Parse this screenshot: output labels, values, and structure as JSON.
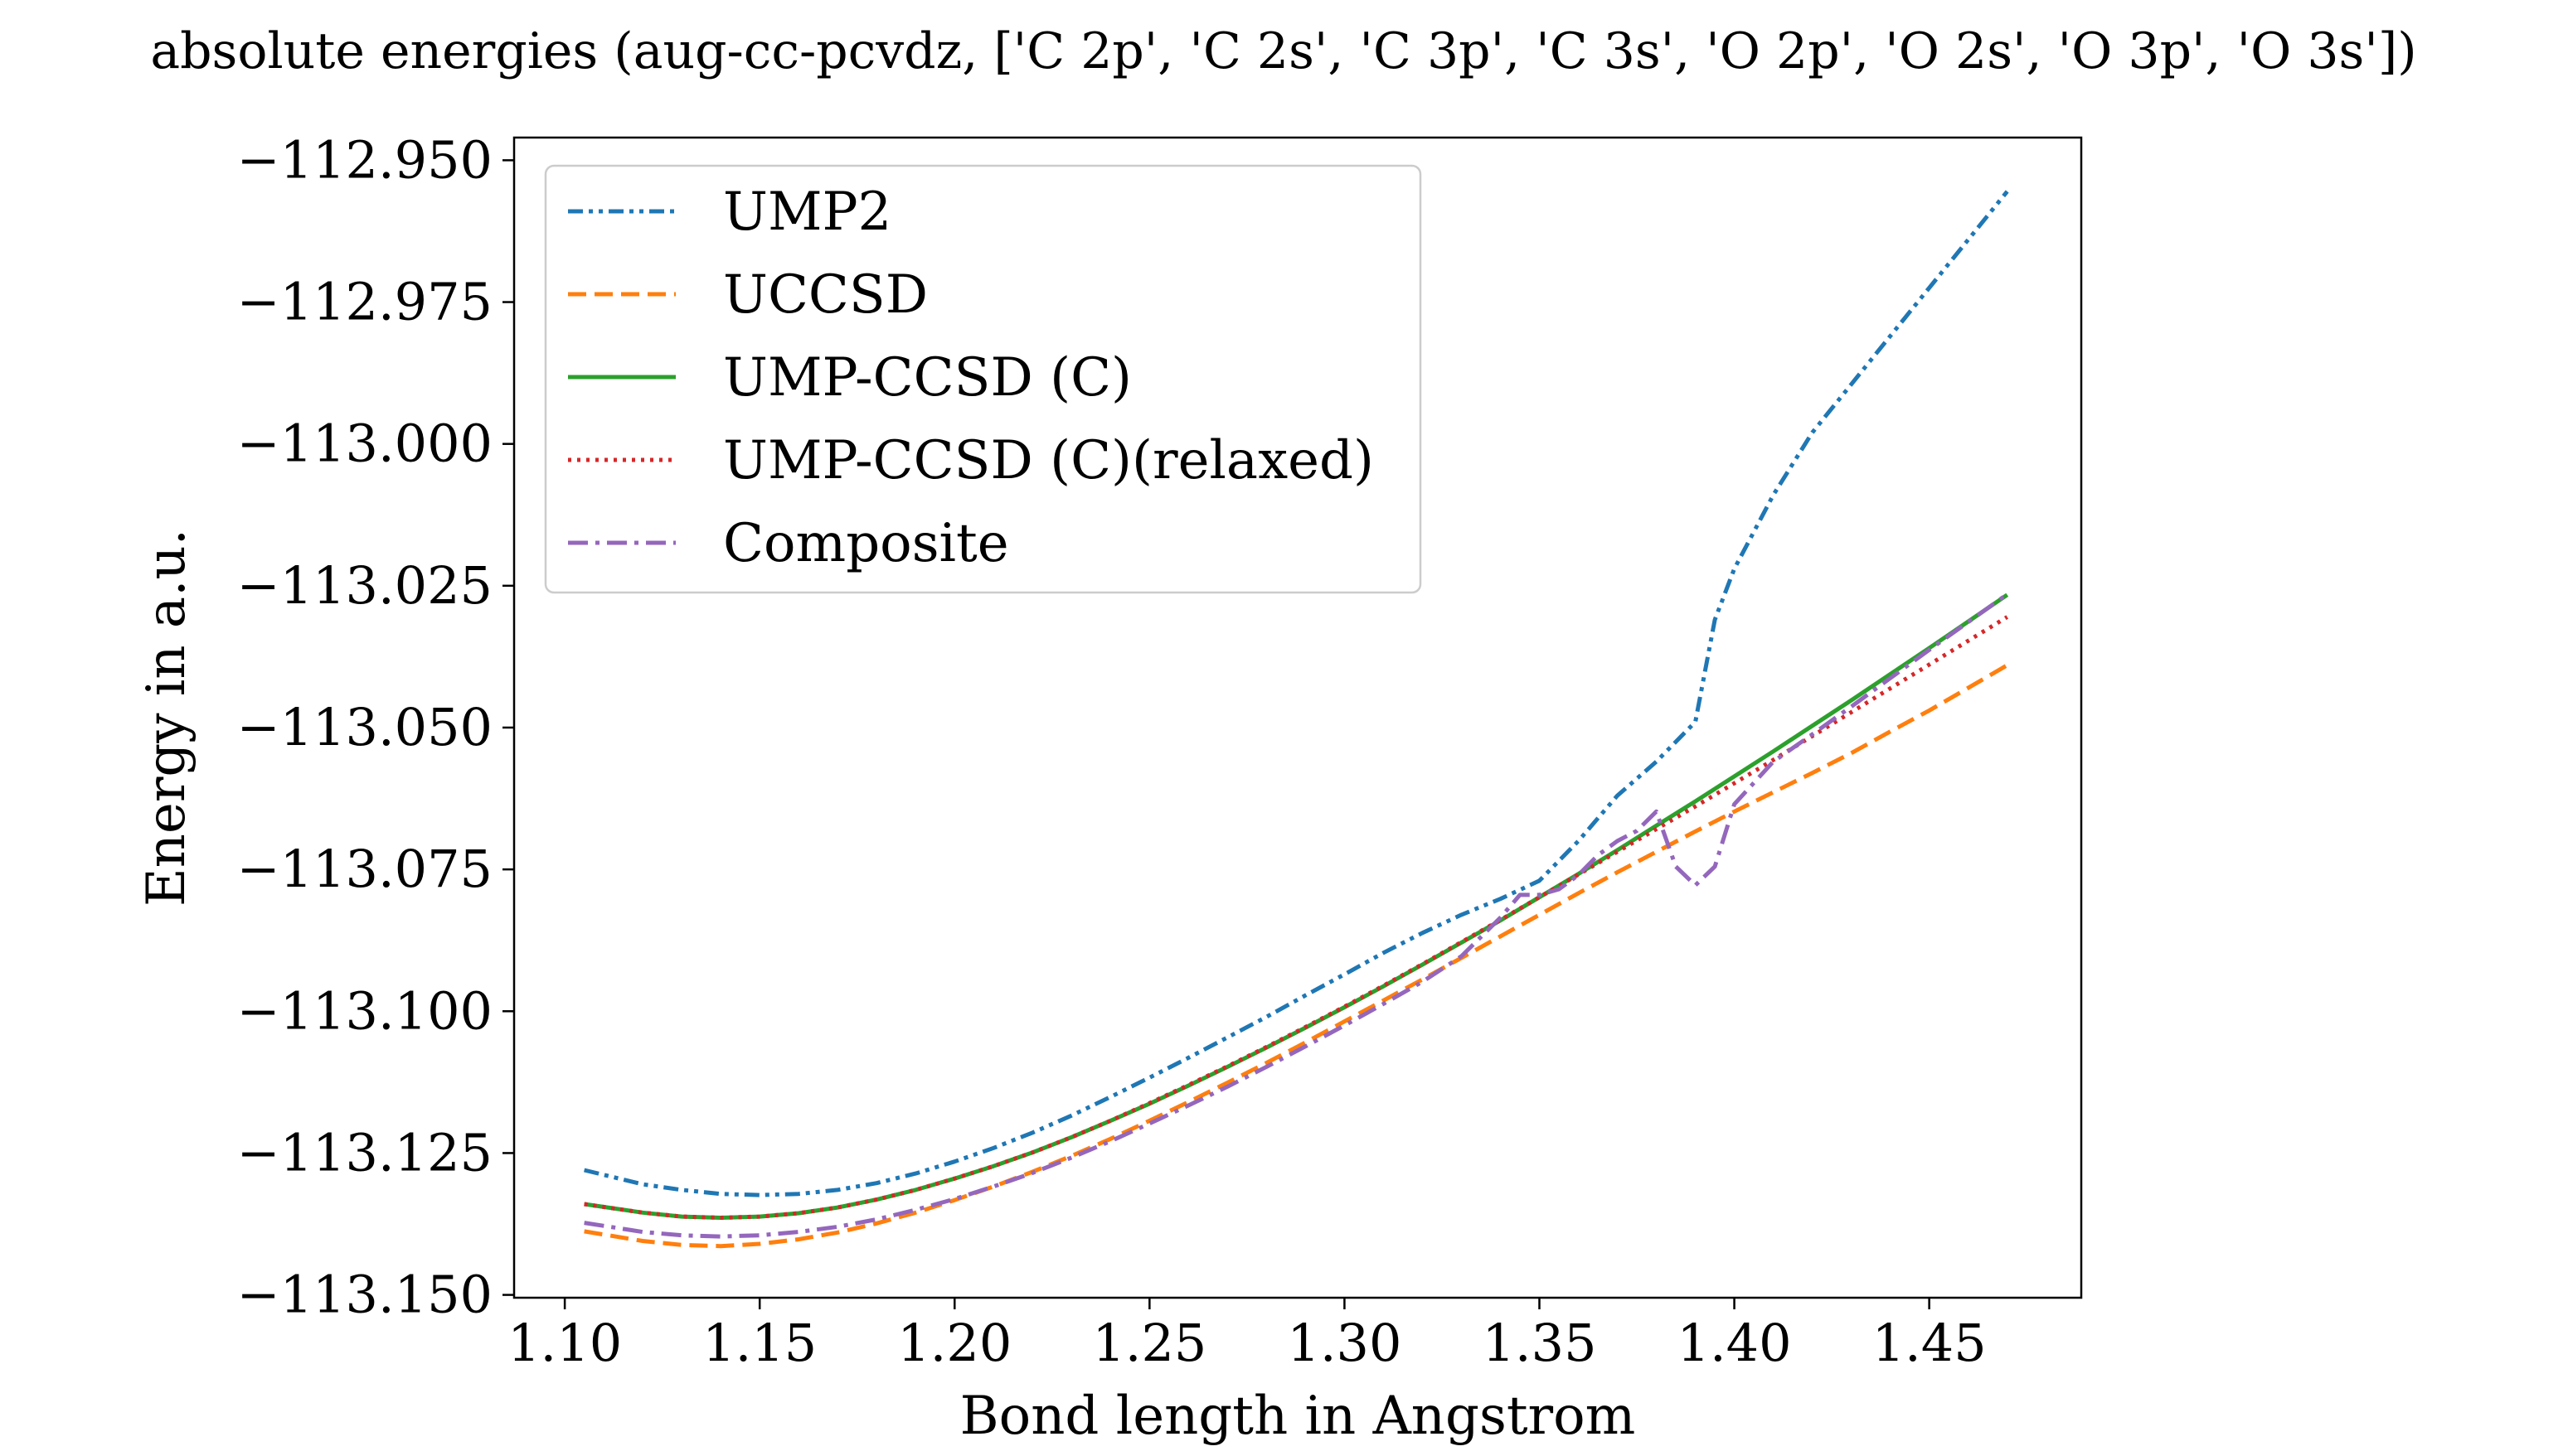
{
  "chart_data": {
    "type": "line",
    "title": "absolute energies (aug-cc-pcvdz, ['C 2p', 'C 2s', 'C 3p', 'C 3s', 'O 2p', 'O 2s', 'O 3p', 'O 3s'])",
    "xlabel": "Bond length in Angstrom",
    "ylabel": "Energy in a.u.",
    "xlim": [
      1.087,
      1.489
    ],
    "ylim": [
      -113.1505,
      -112.946
    ],
    "xticks": [
      "1.10",
      "1.15",
      "1.20",
      "1.25",
      "1.30",
      "1.35",
      "1.40",
      "1.45"
    ],
    "xtick_values": [
      1.1,
      1.15,
      1.2,
      1.25,
      1.3,
      1.35,
      1.4,
      1.45
    ],
    "yticks": [
      "−112.950",
      "−112.975",
      "−113.000",
      "−113.025",
      "−113.050",
      "−113.075",
      "−113.100",
      "−113.125",
      "−113.150"
    ],
    "ytick_values": [
      -112.95,
      -112.975,
      -113.0,
      -113.025,
      -113.05,
      -113.075,
      -113.1,
      -113.125,
      -113.15
    ],
    "legend_position": "upper-left",
    "series": [
      {
        "name": "UMP2",
        "color": "#1f77b4",
        "dash": "dashdot-dot",
        "x": [
          1.105,
          1.12,
          1.13,
          1.14,
          1.15,
          1.16,
          1.17,
          1.18,
          1.19,
          1.2,
          1.21,
          1.22,
          1.23,
          1.24,
          1.25,
          1.26,
          1.27,
          1.28,
          1.29,
          1.3,
          1.31,
          1.32,
          1.33,
          1.34,
          1.35,
          1.36,
          1.37,
          1.38,
          1.39,
          1.395,
          1.4,
          1.41,
          1.42,
          1.43,
          1.44,
          1.45,
          1.46,
          1.47
        ],
        "y": [
          -113.128,
          -113.1305,
          -113.1315,
          -113.1322,
          -113.1324,
          -113.1322,
          -113.1315,
          -113.1303,
          -113.1286,
          -113.1265,
          -113.1241,
          -113.1214,
          -113.1184,
          -113.1151,
          -113.1117,
          -113.1082,
          -113.1046,
          -113.101,
          -113.0972,
          -113.0935,
          -113.0897,
          -113.0862,
          -113.083,
          -113.0802,
          -113.077,
          -113.07,
          -113.062,
          -113.056,
          -113.049,
          -113.031,
          -113.022,
          -113.009,
          -112.998,
          -112.9895,
          -112.981,
          -112.9725,
          -112.964,
          -112.9555
        ]
      },
      {
        "name": "UCCSD",
        "color": "#ff7f0e",
        "dash": "dashed",
        "x": [
          1.105,
          1.12,
          1.13,
          1.14,
          1.15,
          1.16,
          1.17,
          1.18,
          1.19,
          1.2,
          1.21,
          1.22,
          1.23,
          1.24,
          1.25,
          1.26,
          1.27,
          1.28,
          1.29,
          1.3,
          1.31,
          1.32,
          1.33,
          1.34,
          1.35,
          1.36,
          1.37,
          1.38,
          1.39,
          1.4,
          1.41,
          1.42,
          1.43,
          1.44,
          1.45,
          1.46,
          1.47
        ],
        "y": [
          -113.1388,
          -113.1405,
          -113.1412,
          -113.1414,
          -113.141,
          -113.1402,
          -113.139,
          -113.1374,
          -113.1355,
          -113.1333,
          -113.1309,
          -113.1283,
          -113.1255,
          -113.1225,
          -113.1193,
          -113.116,
          -113.1126,
          -113.1091,
          -113.1055,
          -113.1018,
          -113.0981,
          -113.0944,
          -113.0906,
          -113.0868,
          -113.083,
          -113.0792,
          -113.0755,
          -113.0719,
          -113.0683,
          -113.0648,
          -113.0614,
          -113.058,
          -113.0545,
          -113.0507,
          -113.047,
          -113.043,
          -113.039
        ]
      },
      {
        "name": "UMP-CCSD (C)",
        "color": "#2ca02c",
        "dash": "solid",
        "x": [
          1.105,
          1.12,
          1.13,
          1.14,
          1.15,
          1.16,
          1.17,
          1.18,
          1.19,
          1.2,
          1.21,
          1.22,
          1.23,
          1.24,
          1.25,
          1.26,
          1.27,
          1.28,
          1.29,
          1.3,
          1.31,
          1.32,
          1.33,
          1.34,
          1.35,
          1.36,
          1.37,
          1.38,
          1.39,
          1.4,
          1.41,
          1.42,
          1.43,
          1.44,
          1.45,
          1.46,
          1.47
        ],
        "y": [
          -113.134,
          -113.1355,
          -113.1362,
          -113.1364,
          -113.1362,
          -113.1356,
          -113.1346,
          -113.1332,
          -113.1315,
          -113.1295,
          -113.1273,
          -113.1249,
          -113.1222,
          -113.1193,
          -113.1163,
          -113.1131,
          -113.1098,
          -113.1064,
          -113.1029,
          -113.0993,
          -113.0956,
          -113.0918,
          -113.0879,
          -113.084,
          -113.0799,
          -113.0758,
          -113.0716,
          -113.0673,
          -113.063,
          -113.0586,
          -113.0542,
          -113.0497,
          -113.0452,
          -113.0406,
          -113.036,
          -113.0313,
          -113.0266
        ]
      },
      {
        "name": "UMP-CCSD (C)(relaxed)",
        "color": "#d62728",
        "dash": "dotted",
        "x": [
          1.105,
          1.12,
          1.13,
          1.14,
          1.15,
          1.16,
          1.17,
          1.18,
          1.19,
          1.2,
          1.21,
          1.22,
          1.23,
          1.24,
          1.25,
          1.26,
          1.27,
          1.28,
          1.29,
          1.3,
          1.31,
          1.32,
          1.33,
          1.34,
          1.35,
          1.36,
          1.37,
          1.38,
          1.39,
          1.4,
          1.41,
          1.42,
          1.43,
          1.44,
          1.45,
          1.46,
          1.47
        ],
        "y": [
          -113.134,
          -113.1355,
          -113.1362,
          -113.1364,
          -113.1362,
          -113.1356,
          -113.1346,
          -113.1332,
          -113.1315,
          -113.1295,
          -113.1273,
          -113.1249,
          -113.1222,
          -113.1193,
          -113.1162,
          -113.113,
          -113.1097,
          -113.1063,
          -113.1028,
          -113.0992,
          -113.0955,
          -113.0917,
          -113.0878,
          -113.0839,
          -113.0799,
          -113.0759,
          -113.0719,
          -113.0679,
          -113.0639,
          -113.0598,
          -113.0557,
          -113.0515,
          -113.0473,
          -113.0431,
          -113.0389,
          -113.0347,
          -113.0305
        ]
      },
      {
        "name": "Composite",
        "color": "#9467bd",
        "dash": "dashdot",
        "x": [
          1.105,
          1.12,
          1.13,
          1.14,
          1.15,
          1.16,
          1.17,
          1.18,
          1.19,
          1.2,
          1.21,
          1.22,
          1.23,
          1.24,
          1.25,
          1.26,
          1.27,
          1.28,
          1.29,
          1.3,
          1.31,
          1.32,
          1.33,
          1.34,
          1.345,
          1.35,
          1.355,
          1.36,
          1.365,
          1.37,
          1.375,
          1.38,
          1.385,
          1.39,
          1.395,
          1.4,
          1.41,
          1.42,
          1.43,
          1.44,
          1.45,
          1.46,
          1.47
        ],
        "y": [
          -113.1373,
          -113.1389,
          -113.1395,
          -113.1397,
          -113.1395,
          -113.1389,
          -113.138,
          -113.1367,
          -113.135,
          -113.1331,
          -113.1309,
          -113.1285,
          -113.1258,
          -113.1229,
          -113.1198,
          -113.1166,
          -113.1133,
          -113.1098,
          -113.1062,
          -113.1025,
          -113.0987,
          -113.0948,
          -113.0903,
          -113.0835,
          -113.0795,
          -113.0795,
          -113.0785,
          -113.076,
          -113.0725,
          -113.07,
          -113.0682,
          -113.0648,
          -113.0745,
          -113.0778,
          -113.0745,
          -113.0635,
          -113.056,
          -113.0512,
          -113.0463,
          -113.0413,
          -113.0363,
          -113.0314,
          -113.0265
        ]
      }
    ]
  }
}
